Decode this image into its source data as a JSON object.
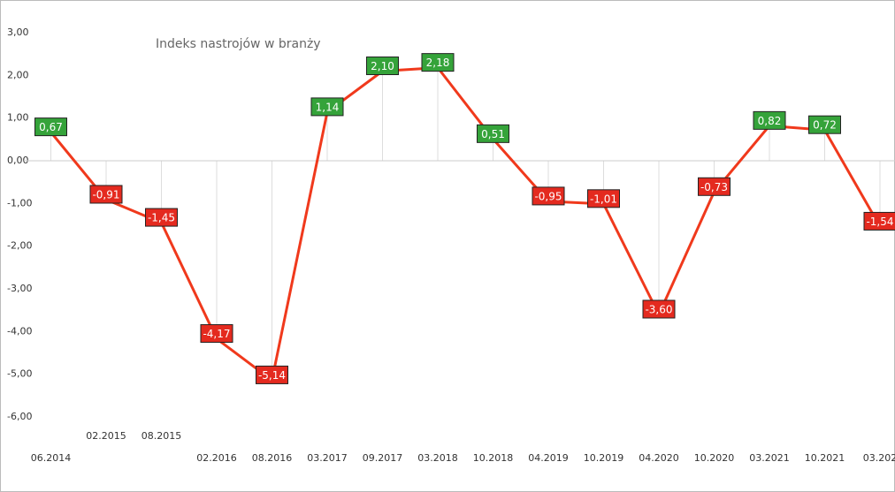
{
  "chart_data": {
    "type": "line",
    "title": "Indeks nastrojów w branży",
    "categories": [
      "06.2014",
      "02.2015",
      "08.2015",
      "02.2016",
      "08.2016",
      "03.2017",
      "09.2017",
      "03.2018",
      "10.2018",
      "04.2019",
      "10.2019",
      "04.2020",
      "10.2020",
      "03.2021",
      "10.2021",
      "03.202"
    ],
    "series": [
      {
        "name": "Indeks",
        "color": "#f0391c",
        "values": [
          0.67,
          -0.91,
          -1.45,
          -4.17,
          -5.14,
          1.14,
          2.1,
          2.18,
          0.51,
          -0.95,
          -1.01,
          -3.6,
          -0.73,
          0.82,
          0.72,
          -1.54
        ],
        "value_labels": [
          "0,67",
          "-0,91",
          "-1,45",
          "-4,17",
          "-5,14",
          "1,14",
          "2,10",
          "2,18",
          "0,51",
          "-0,95",
          "-1,01",
          "-3,60",
          "-0,73",
          "0,82",
          "0,72",
          "-1,54"
        ]
      }
    ],
    "positive_color": "#35a33a",
    "negative_color": "#e42a1f",
    "ylim": [
      -6,
      3
    ],
    "yticks": [
      {
        "value": 3,
        "label": "3,00"
      },
      {
        "value": 2,
        "label": "2,00"
      },
      {
        "value": 1,
        "label": "1,00"
      },
      {
        "value": 0,
        "label": "0,00"
      },
      {
        "value": -1,
        "label": "-1,00"
      },
      {
        "value": -2,
        "label": "-2,00"
      },
      {
        "value": -3,
        "label": "-3,00"
      },
      {
        "value": -4,
        "label": "-4,00"
      },
      {
        "value": -5,
        "label": "-5,00"
      },
      {
        "value": -6,
        "label": "-6,00"
      }
    ],
    "drop_lines": true
  }
}
